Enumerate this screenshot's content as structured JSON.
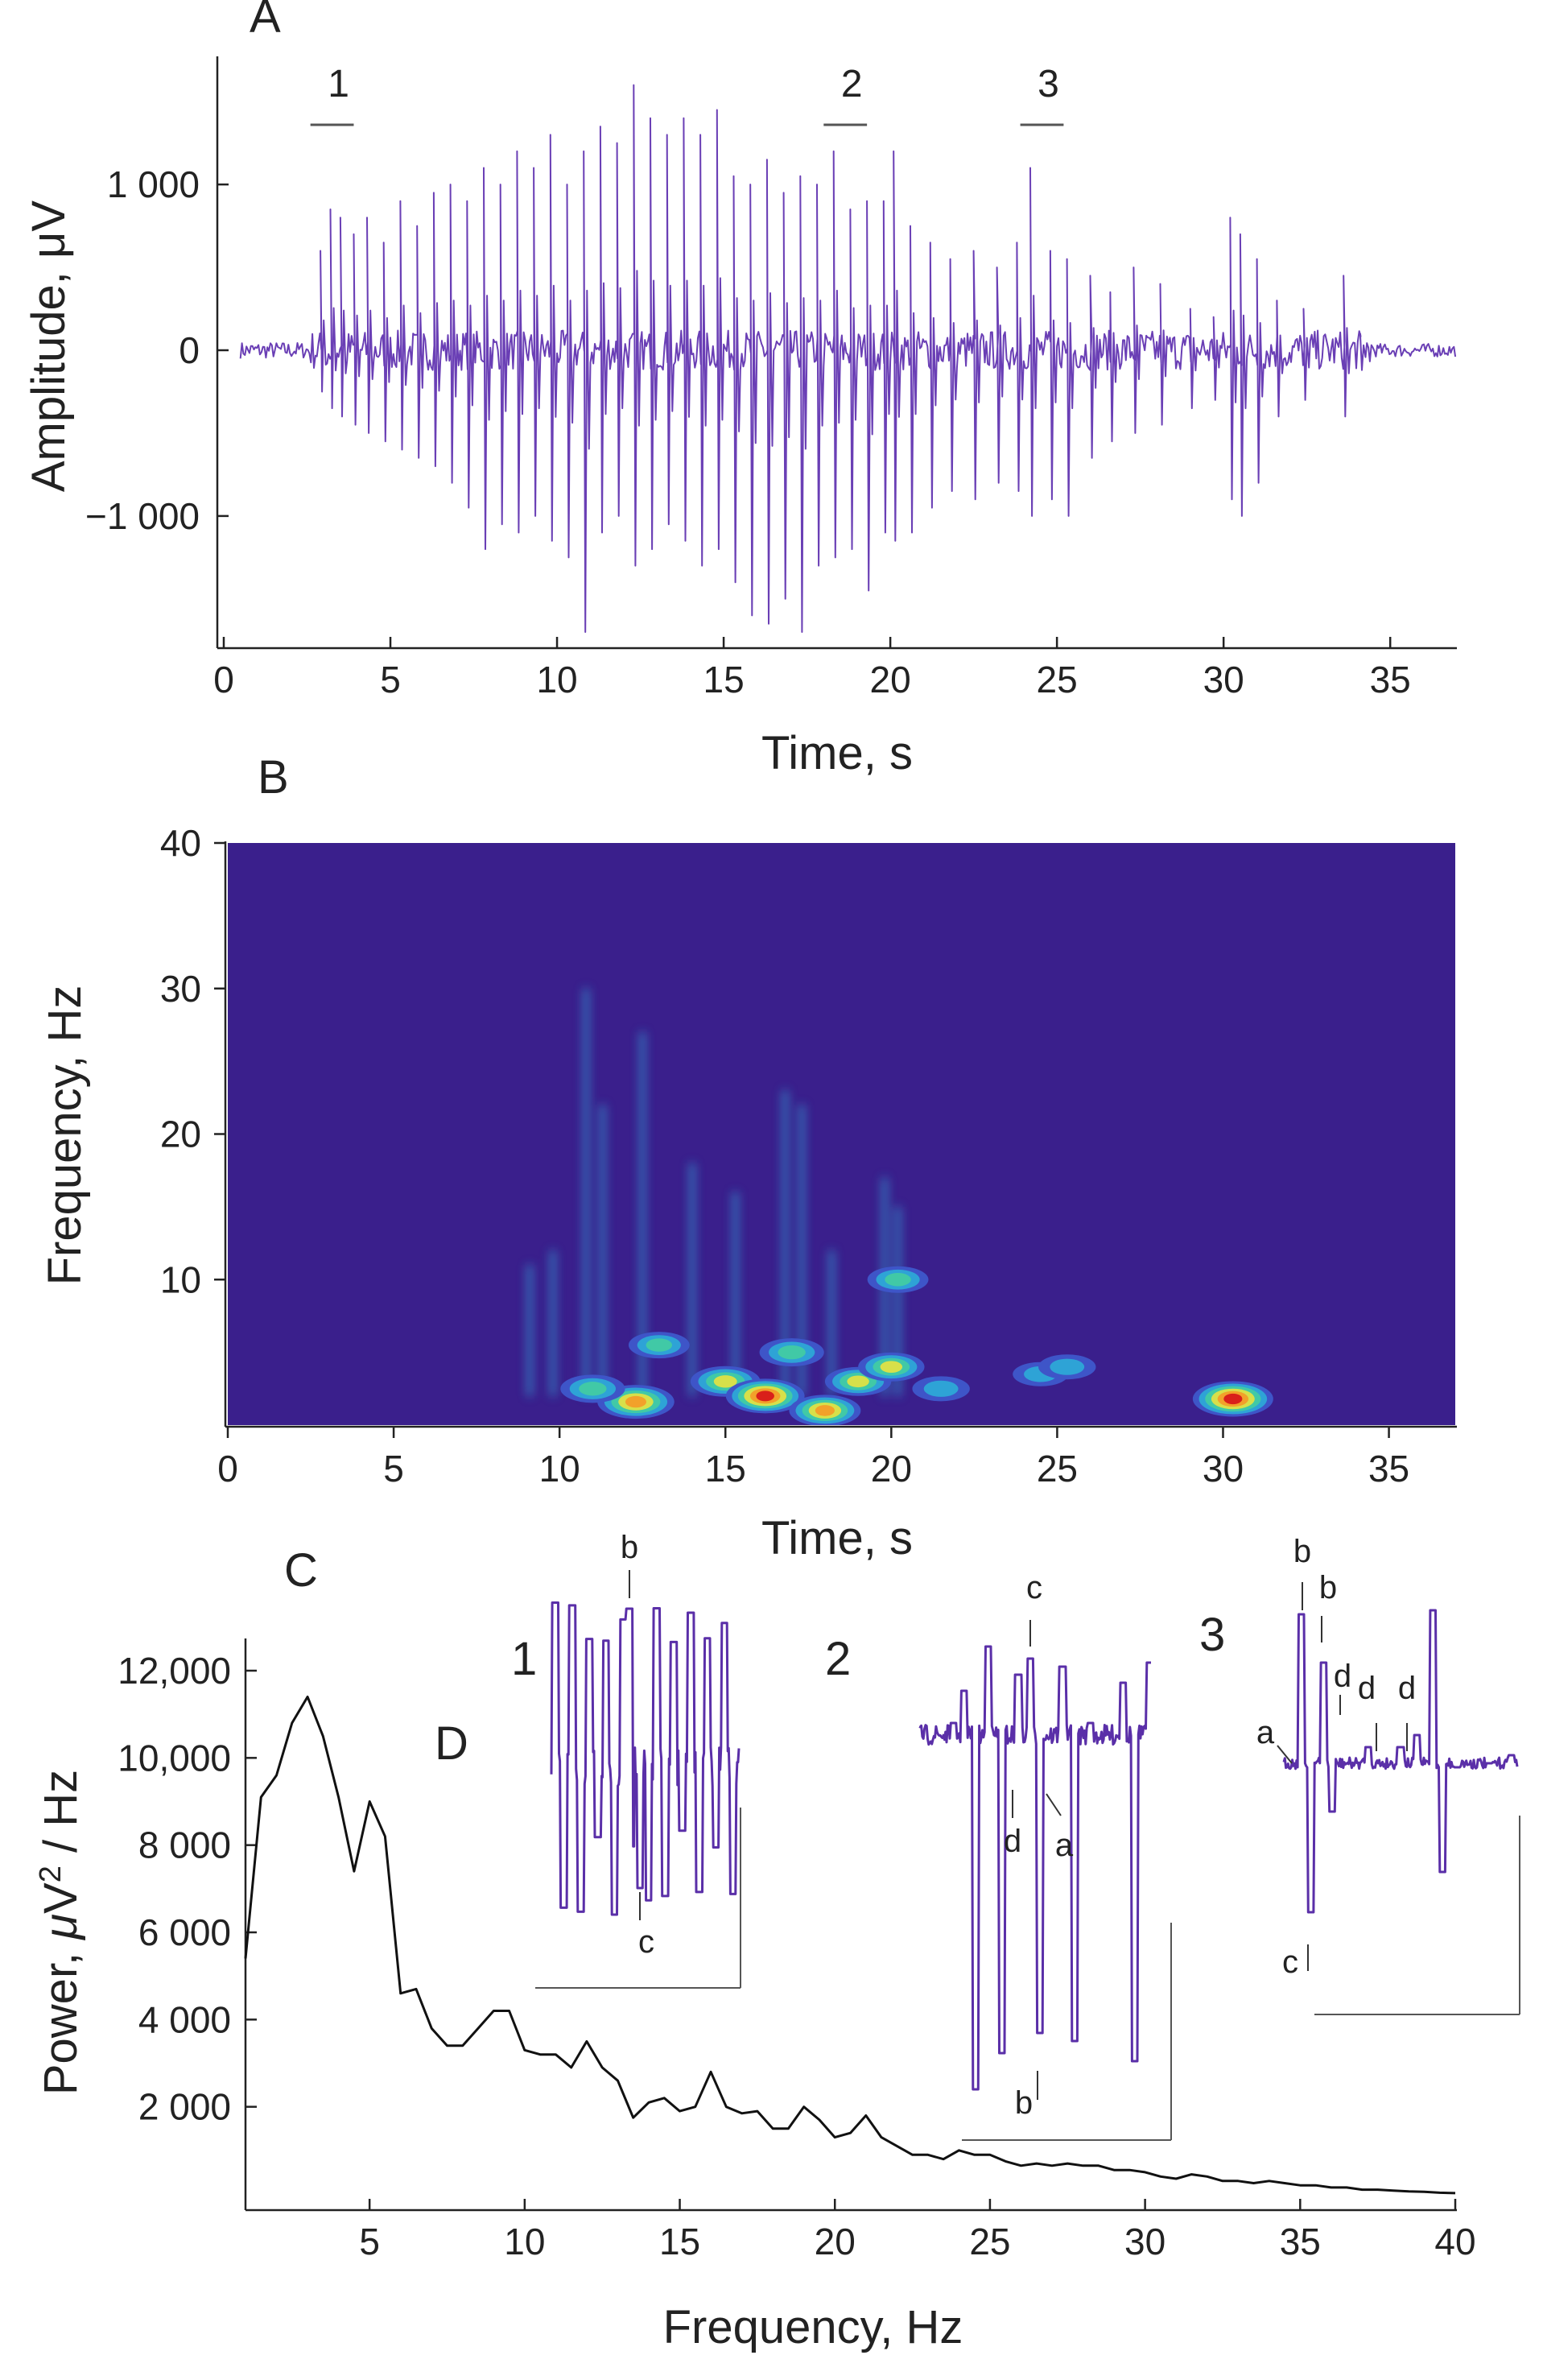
{
  "chart_data": [
    {
      "id": "A",
      "type": "line",
      "panel_label": "A",
      "xlabel": "Time, s",
      "ylabel": "Amplitude, μV",
      "xlim": [
        0,
        37
      ],
      "ylim": [
        -1700,
        1700
      ],
      "xticks": [
        0,
        5,
        10,
        15,
        20,
        25,
        30,
        35
      ],
      "yticks": [
        -1000,
        0,
        1000
      ],
      "ytick_labels": [
        "−1 000",
        "0",
        "1 000"
      ],
      "color": "#6a3fb5",
      "segments": [
        {
          "label": "1",
          "start": 2.6,
          "end": 3.9
        },
        {
          "label": "2",
          "start": 18.0,
          "end": 19.3
        },
        {
          "label": "3",
          "start": 23.9,
          "end": 25.2
        }
      ],
      "spikes": [
        {
          "t": 2.9,
          "up": 600,
          "down": -250
        },
        {
          "t": 3.2,
          "up": 850,
          "down": -350
        },
        {
          "t": 3.5,
          "up": 800,
          "down": -400
        },
        {
          "t": 3.9,
          "up": 700,
          "down": -450
        },
        {
          "t": 4.3,
          "up": 800,
          "down": -500
        },
        {
          "t": 4.8,
          "up": 650,
          "down": -550
        },
        {
          "t": 5.3,
          "up": 900,
          "down": -600
        },
        {
          "t": 5.8,
          "up": 750,
          "down": -650
        },
        {
          "t": 6.3,
          "up": 950,
          "down": -700
        },
        {
          "t": 6.8,
          "up": 1000,
          "down": -800
        },
        {
          "t": 7.3,
          "up": 900,
          "down": -950
        },
        {
          "t": 7.8,
          "up": 1100,
          "down": -1200
        },
        {
          "t": 8.3,
          "up": 1000,
          "down": -1050
        },
        {
          "t": 8.8,
          "up": 1200,
          "down": -1100
        },
        {
          "t": 9.3,
          "up": 1100,
          "down": -1000
        },
        {
          "t": 9.8,
          "up": 1300,
          "down": -1150
        },
        {
          "t": 10.3,
          "up": 1000,
          "down": -1250
        },
        {
          "t": 10.8,
          "up": 1200,
          "down": -1700
        },
        {
          "t": 11.3,
          "up": 1350,
          "down": -1100
        },
        {
          "t": 11.8,
          "up": 1250,
          "down": -1000
        },
        {
          "t": 12.3,
          "up": 1600,
          "down": -1300
        },
        {
          "t": 12.8,
          "up": 1400,
          "down": -1200
        },
        {
          "t": 13.3,
          "up": 1300,
          "down": -1050
        },
        {
          "t": 13.8,
          "up": 1400,
          "down": -1150
        },
        {
          "t": 14.3,
          "up": 1300,
          "down": -1300
        },
        {
          "t": 14.8,
          "up": 1450,
          "down": -1200
        },
        {
          "t": 15.3,
          "up": 1050,
          "down": -1400
        },
        {
          "t": 15.8,
          "up": 1000,
          "down": -1600
        },
        {
          "t": 16.3,
          "up": 1150,
          "down": -1650
        },
        {
          "t": 16.8,
          "up": 950,
          "down": -1500
        },
        {
          "t": 17.3,
          "up": 1050,
          "down": -1700
        },
        {
          "t": 17.8,
          "up": 1000,
          "down": -1300
        },
        {
          "t": 18.3,
          "up": 1200,
          "down": -1250
        },
        {
          "t": 18.8,
          "up": 850,
          "down": -1200
        },
        {
          "t": 19.3,
          "up": 900,
          "down": -1450
        },
        {
          "t": 19.8,
          "up": 900,
          "down": -1100
        },
        {
          "t": 20.1,
          "up": 1200,
          "down": -1150
        },
        {
          "t": 20.6,
          "up": 750,
          "down": -1100
        },
        {
          "t": 21.2,
          "up": 650,
          "down": -950
        },
        {
          "t": 21.8,
          "up": 550,
          "down": -850
        },
        {
          "t": 22.5,
          "up": 600,
          "down": -900
        },
        {
          "t": 23.2,
          "up": 500,
          "down": -800
        },
        {
          "t": 23.8,
          "up": 650,
          "down": -850
        },
        {
          "t": 24.2,
          "up": 1100,
          "down": -1000
        },
        {
          "t": 24.8,
          "up": 600,
          "down": -900
        },
        {
          "t": 25.3,
          "up": 550,
          "down": -1000
        },
        {
          "t": 26.0,
          "up": 450,
          "down": -650
        },
        {
          "t": 26.6,
          "up": 350,
          "down": -550
        },
        {
          "t": 27.3,
          "up": 500,
          "down": -500
        },
        {
          "t": 28.1,
          "up": 400,
          "down": -450
        },
        {
          "t": 29.0,
          "up": 250,
          "down": -350
        },
        {
          "t": 29.7,
          "up": 200,
          "down": -300
        },
        {
          "t": 30.2,
          "up": 800,
          "down": -900
        },
        {
          "t": 30.5,
          "up": 700,
          "down": -1000
        },
        {
          "t": 31.0,
          "up": 550,
          "down": -800
        },
        {
          "t": 31.6,
          "up": 300,
          "down": -400
        },
        {
          "t": 32.4,
          "up": 250,
          "down": -300
        },
        {
          "t": 33.6,
          "up": 450,
          "down": -400
        },
        {
          "t": 34.1,
          "up": 100,
          "down": -120
        }
      ]
    },
    {
      "id": "B",
      "type": "heatmap",
      "panel_label": "B",
      "xlabel": "Time, s",
      "ylabel": "Frequency, Hz",
      "xlim": [
        0,
        37
      ],
      "ylim": [
        0,
        40
      ],
      "xticks": [
        0,
        5,
        10,
        15,
        20,
        25,
        30,
        35
      ],
      "yticks": [
        10,
        20,
        30,
        40
      ],
      "colormap": [
        "#3b208e",
        "#3e55c8",
        "#2ea3d6",
        "#41c9a6",
        "#d7e04a",
        "#f2a12a",
        "#d9201a"
      ],
      "background": "#3a1f8c",
      "blobs": [
        {
          "t": 12.3,
          "f": 1.6,
          "intensity": 0.9
        },
        {
          "t": 13.0,
          "f": 5.5,
          "intensity": 0.45
        },
        {
          "t": 15.0,
          "f": 3.0,
          "intensity": 0.7
        },
        {
          "t": 16.2,
          "f": 2.0,
          "intensity": 0.95
        },
        {
          "t": 17.0,
          "f": 5.0,
          "intensity": 0.55
        },
        {
          "t": 18.0,
          "f": 1.0,
          "intensity": 0.75
        },
        {
          "t": 19.0,
          "f": 3.0,
          "intensity": 0.6
        },
        {
          "t": 20.0,
          "f": 4.0,
          "intensity": 0.6
        },
        {
          "t": 20.2,
          "f": 10.0,
          "intensity": 0.45
        },
        {
          "t": 11.0,
          "f": 2.5,
          "intensity": 0.55
        },
        {
          "t": 21.5,
          "f": 2.5,
          "intensity": 0.35
        },
        {
          "t": 24.5,
          "f": 3.5,
          "intensity": 0.3
        },
        {
          "t": 25.3,
          "f": 4.0,
          "intensity": 0.35
        },
        {
          "t": 30.3,
          "f": 1.8,
          "intensity": 1.0
        }
      ],
      "streaks": [
        {
          "t": 9.1,
          "f_top": 11,
          "intensity": 0.35
        },
        {
          "t": 9.8,
          "f_top": 12,
          "intensity": 0.35
        },
        {
          "t": 10.8,
          "f_top": 30,
          "intensity": 0.3
        },
        {
          "t": 11.3,
          "f_top": 22,
          "intensity": 0.25
        },
        {
          "t": 12.5,
          "f_top": 27,
          "intensity": 0.25
        },
        {
          "t": 14.0,
          "f_top": 18,
          "intensity": 0.25
        },
        {
          "t": 15.3,
          "f_top": 16,
          "intensity": 0.25
        },
        {
          "t": 16.8,
          "f_top": 23,
          "intensity": 0.3
        },
        {
          "t": 17.3,
          "f_top": 22,
          "intensity": 0.3
        },
        {
          "t": 19.8,
          "f_top": 17,
          "intensity": 0.3
        },
        {
          "t": 20.2,
          "f_top": 15,
          "intensity": 0.35
        },
        {
          "t": 18.2,
          "f_top": 12,
          "intensity": 0.25
        }
      ]
    },
    {
      "id": "C",
      "type": "line",
      "panel_label": "C",
      "xlabel": "Frequency, Hz",
      "ylabel": "Power, μV² / Hz",
      "xlim": [
        1,
        40
      ],
      "ylim": [
        0,
        12000
      ],
      "xticks": [
        5,
        10,
        15,
        20,
        25,
        30,
        35,
        40
      ],
      "yticks": [
        2000,
        4000,
        6000,
        8000,
        10000,
        12000
      ],
      "ytick_labels": [
        "2 000",
        "4 000",
        "6 000",
        "8 000",
        "10,000",
        "12,000"
      ],
      "color": "#111111",
      "x": [
        1,
        1.5,
        2,
        2.5,
        3,
        3.5,
        4,
        4.5,
        5,
        5.5,
        6,
        6.5,
        7,
        7.5,
        8,
        8.5,
        9,
        9.5,
        10,
        10.5,
        11,
        11.5,
        12,
        12.5,
        13,
        13.5,
        14,
        14.5,
        15,
        15.5,
        16,
        16.5,
        17,
        17.5,
        18,
        18.5,
        19,
        19.5,
        20,
        20.5,
        21,
        21.5,
        22,
        22.5,
        23,
        23.5,
        24,
        24.5,
        25,
        25.5,
        26,
        26.5,
        27,
        27.5,
        28,
        28.5,
        29,
        29.5,
        30,
        30.5,
        31,
        31.5,
        32,
        32.5,
        33,
        33.5,
        34,
        34.5,
        35,
        35.5,
        36,
        36.5,
        37,
        37.5,
        38,
        38.5,
        39,
        39.5,
        40
      ],
      "y": [
        5400,
        9100,
        9600,
        10800,
        11400,
        10500,
        9100,
        7400,
        9000,
        8200,
        4600,
        4700,
        3800,
        3400,
        3400,
        3800,
        4200,
        4200,
        3300,
        3200,
        3200,
        2900,
        3500,
        2900,
        2600,
        1750,
        2100,
        2200,
        1900,
        2000,
        2800,
        2000,
        1850,
        1900,
        1500,
        1500,
        2000,
        1700,
        1300,
        1400,
        1800,
        1300,
        1100,
        900,
        900,
        800,
        1000,
        900,
        900,
        750,
        650,
        700,
        650,
        700,
        650,
        650,
        550,
        550,
        500,
        400,
        350,
        450,
        400,
        300,
        300,
        250,
        300,
        250,
        200,
        200,
        150,
        150,
        100,
        100,
        80,
        60,
        50,
        30,
        20
      ]
    }
  ],
  "panel_d": {
    "label": "D",
    "insets": [
      {
        "number": "1",
        "labels": [
          "b",
          "c"
        ]
      },
      {
        "number": "2",
        "labels": [
          "c",
          "d",
          "a",
          "b"
        ]
      },
      {
        "number": "3",
        "labels": [
          "b",
          "b",
          "d",
          "d",
          "d",
          "a",
          "c"
        ]
      }
    ]
  }
}
